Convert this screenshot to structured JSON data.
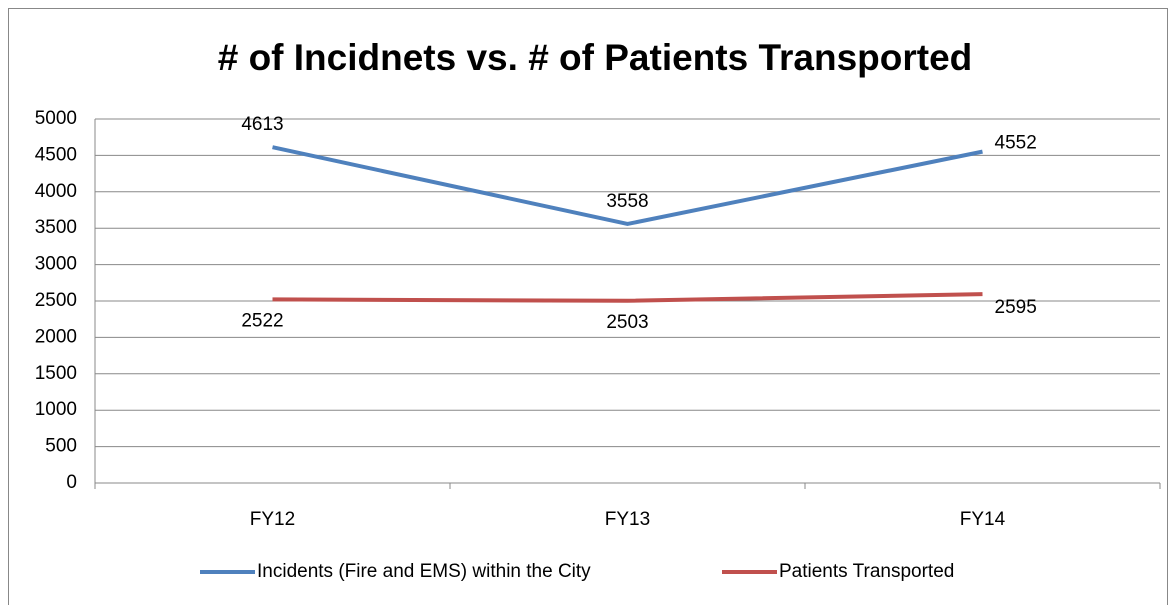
{
  "chart_data": {
    "type": "line",
    "title": "# of Incidnets vs. # of Patients Transported",
    "categories": [
      "FY12",
      "FY13",
      "FY14"
    ],
    "series": [
      {
        "name": "Incidents (Fire and EMS) within the City",
        "color": "#4f81bd",
        "values": [
          4613,
          3558,
          4552
        ]
      },
      {
        "name": "Patients Transported",
        "color": "#c0504d",
        "values": [
          2522,
          2503,
          2595
        ]
      }
    ],
    "ylim": [
      0,
      5000
    ],
    "yticks": [
      0,
      500,
      1000,
      1500,
      2000,
      2500,
      3000,
      3500,
      4000,
      4500,
      5000
    ],
    "grid": true,
    "legend": "bottom"
  }
}
